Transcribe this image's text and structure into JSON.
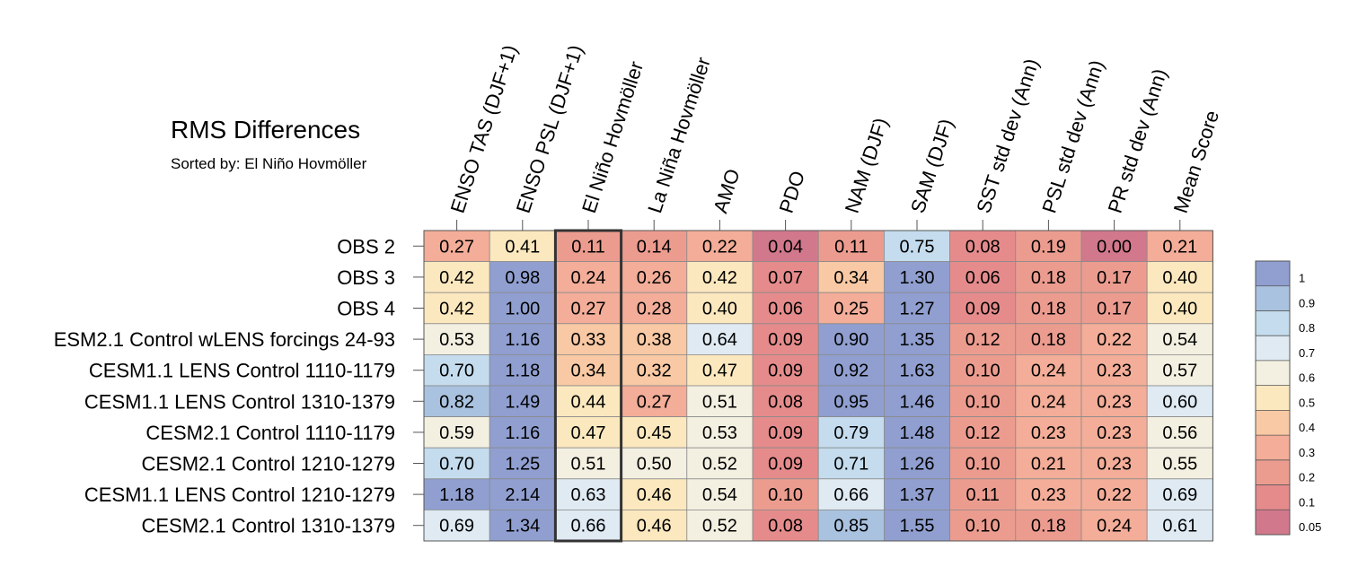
{
  "chart_data": {
    "type": "heatmap",
    "title": "RMS Differences",
    "subtitle": "Sorted by: El Niño Hovmöller",
    "highlight_column": "El Niño Hovmöller",
    "columns": [
      "ENSO TAS (DJF+1)",
      "ENSO PSL (DJF+1)",
      "El Niño Hovmöller",
      "La Niña Hovmöller",
      "AMO",
      "PDO",
      "NAM (DJF)",
      "SAM (DJF)",
      "SST std dev (Ann)",
      "PSL std dev (Ann)",
      "PR std dev (Ann)",
      "Mean Score"
    ],
    "rows": [
      "OBS 2",
      "OBS 3",
      "OBS 4",
      "ESM2.1 Control wLENS forcings 24-93",
      "CESM1.1 LENS Control 1110-1179",
      "CESM1.1 LENS Control 1310-1379",
      "CESM2.1 Control 1110-1179",
      "CESM2.1 Control 1210-1279",
      "CESM1.1 LENS Control 1210-1279",
      "CESM2.1 Control 1310-1379"
    ],
    "values": [
      [
        0.27,
        0.41,
        0.11,
        0.14,
        0.22,
        0.04,
        0.11,
        0.75,
        0.08,
        0.19,
        0.0,
        0.21
      ],
      [
        0.42,
        0.98,
        0.24,
        0.26,
        0.42,
        0.07,
        0.34,
        1.3,
        0.06,
        0.18,
        0.17,
        0.4
      ],
      [
        0.42,
        1.0,
        0.27,
        0.28,
        0.4,
        0.06,
        0.25,
        1.27,
        0.09,
        0.18,
        0.17,
        0.4
      ],
      [
        0.53,
        1.16,
        0.33,
        0.38,
        0.64,
        0.09,
        0.9,
        1.35,
        0.12,
        0.18,
        0.22,
        0.54
      ],
      [
        0.7,
        1.18,
        0.34,
        0.32,
        0.47,
        0.09,
        0.92,
        1.63,
        0.1,
        0.24,
        0.23,
        0.57
      ],
      [
        0.82,
        1.49,
        0.44,
        0.27,
        0.51,
        0.08,
        0.95,
        1.46,
        0.1,
        0.24,
        0.23,
        0.6
      ],
      [
        0.59,
        1.16,
        0.47,
        0.45,
        0.53,
        0.09,
        0.79,
        1.48,
        0.12,
        0.23,
        0.23,
        0.56
      ],
      [
        0.7,
        1.25,
        0.51,
        0.5,
        0.52,
        0.09,
        0.71,
        1.26,
        0.1,
        0.21,
        0.23,
        0.55
      ],
      [
        1.18,
        2.14,
        0.63,
        0.46,
        0.54,
        0.1,
        0.66,
        1.37,
        0.11,
        0.23,
        0.22,
        0.69
      ],
      [
        0.69,
        1.34,
        0.66,
        0.46,
        0.52,
        0.08,
        0.85,
        1.55,
        0.1,
        0.18,
        0.24,
        0.61
      ]
    ],
    "legend": {
      "ticks": [
        "1",
        "0.9",
        "0.8",
        "0.7",
        "0.6",
        "0.5",
        "0.4",
        "0.3",
        "0.2",
        "0.1",
        "0.05"
      ],
      "boundaries": [
        0,
        0.05,
        0.1,
        0.2,
        0.3,
        0.4,
        0.5,
        0.6,
        0.7,
        0.8,
        0.9,
        1
      ],
      "colors": [
        "#d2788c",
        "#e58b8b",
        "#ec9c8f",
        "#f3ad98",
        "#f8c9a4",
        "#fce8be",
        "#f3f0e1",
        "#dfeaf3",
        "#c4dced",
        "#a9c2df",
        "#909fd0"
      ],
      "placement": "right"
    }
  }
}
